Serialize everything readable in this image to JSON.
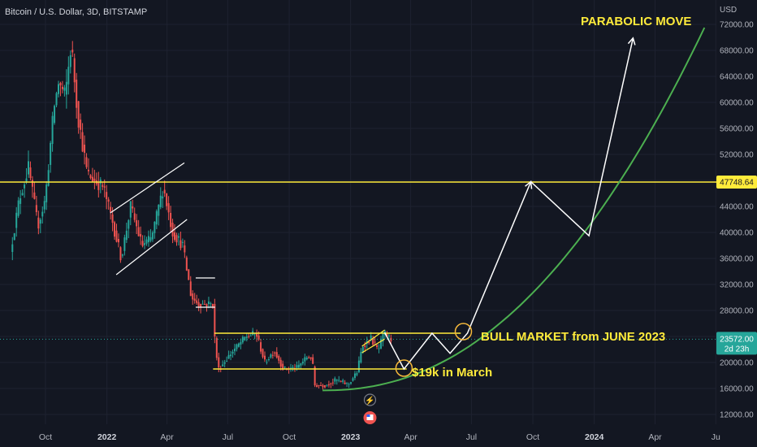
{
  "header": {
    "title": "Bitcoin / U.S. Dollar, 3D, BITSTAMP"
  },
  "colors": {
    "background": "#131722",
    "grid": "#1e2230",
    "up": "#26a69a",
    "down": "#ef5350",
    "annotation": "#ffeb3b",
    "projection": "#ffffff",
    "curve": "#4caf50",
    "price_badge": "#26a69a",
    "level_badge": "#ffeb3b",
    "event_marker": "#ef5350"
  },
  "annotations": {
    "parabolic": "PARABOLIC MOVE",
    "bull": "BULL MARKET from JUNE 2023",
    "march": "$19k in March"
  },
  "badges": {
    "level_value": "47748.64",
    "price_value": "23572.00",
    "price_countdown": "2d 23h"
  },
  "chart_data": {
    "type": "candlestick",
    "title": "Bitcoin / U.S. Dollar, 3D, BITSTAMP",
    "y_axis": {
      "unit": "USD",
      "ticks": [
        "72000.00",
        "68000.00",
        "64000.00",
        "60000.00",
        "56000.00",
        "52000.00",
        "48000.00",
        "44000.00",
        "40000.00",
        "36000.00",
        "32000.00",
        "28000.00",
        "24000.00",
        "20000.00",
        "16000.00",
        "12000.00"
      ],
      "range": [
        10000,
        74600
      ],
      "position": "right"
    },
    "x_axis": {
      "ticks": [
        {
          "label": "Oct",
          "date": "2021-10-01"
        },
        {
          "label": "2022",
          "date": "2022-01-01",
          "bold": true
        },
        {
          "label": "Apr",
          "date": "2022-04-01"
        },
        {
          "label": "Jul",
          "date": "2022-07-01"
        },
        {
          "label": "Oct",
          "date": "2022-10-01"
        },
        {
          "label": "2023",
          "date": "2023-01-01",
          "bold": true
        },
        {
          "label": "Apr",
          "date": "2023-04-01"
        },
        {
          "label": "Jul",
          "date": "2023-07-01"
        },
        {
          "label": "Oct",
          "date": "2023-10-01"
        },
        {
          "label": "2024",
          "date": "2024-01-01",
          "bold": true
        },
        {
          "label": "Apr",
          "date": "2024-04-01"
        },
        {
          "label": "Ju",
          "date": "2024-07-01"
        }
      ],
      "range": [
        "2021-08-11",
        "2024-07-01"
      ]
    },
    "price_path": [
      [
        "2021-08-11",
        37000
      ],
      [
        "2021-08-24",
        45000
      ],
      [
        "2021-09-07",
        50000
      ],
      [
        "2021-09-21",
        41000
      ],
      [
        "2021-10-02",
        45000
      ],
      [
        "2021-10-15",
        59000
      ],
      [
        "2021-10-22",
        63000
      ],
      [
        "2021-11-01",
        61000
      ],
      [
        "2021-11-10",
        69000
      ],
      [
        "2021-11-20",
        58000
      ],
      [
        "2021-12-04",
        49000
      ],
      [
        "2021-12-15",
        48000
      ],
      [
        "2021-12-28",
        47000
      ],
      [
        "2022-01-10",
        42000
      ],
      [
        "2022-01-24",
        36000
      ],
      [
        "2022-02-07",
        44000
      ],
      [
        "2022-02-24",
        38000
      ],
      [
        "2022-03-10",
        39000
      ],
      [
        "2022-03-28",
        47000
      ],
      [
        "2022-04-11",
        40000
      ],
      [
        "2022-04-26",
        38000
      ],
      [
        "2022-05-09",
        30000
      ],
      [
        "2022-05-20",
        29000
      ],
      [
        "2022-06-10",
        29000
      ],
      [
        "2022-06-14",
        22000
      ],
      [
        "2022-06-19",
        19000
      ],
      [
        "2022-07-08",
        21500
      ],
      [
        "2022-07-30",
        24000
      ],
      [
        "2022-08-14",
        24500
      ],
      [
        "2022-08-27",
        20000
      ],
      [
        "2022-09-10",
        21800
      ],
      [
        "2022-09-24",
        19000
      ],
      [
        "2022-10-14",
        19200
      ],
      [
        "2022-10-29",
        20800
      ],
      [
        "2022-11-06",
        20800
      ],
      [
        "2022-11-09",
        16500
      ],
      [
        "2022-11-25",
        16500
      ],
      [
        "2022-12-12",
        17300
      ],
      [
        "2022-12-30",
        16600
      ],
      [
        "2023-01-12",
        18500
      ],
      [
        "2023-01-20",
        22500
      ],
      [
        "2023-02-02",
        23700
      ],
      [
        "2023-02-13",
        21800
      ],
      [
        "2023-02-21",
        24600
      ],
      [
        "2023-03-03",
        23572
      ]
    ],
    "horizontal_levels": [
      {
        "value": 47748.64,
        "color": "#ffeb3b",
        "label": "47748.64"
      },
      {
        "value": 24500,
        "from": "2022-06-11",
        "to": "2023-06-15"
      },
      {
        "value": 19000,
        "from": "2022-06-09",
        "to": "2023-03-26"
      }
    ],
    "projection_path": [
      [
        "2023-02-21",
        24600
      ],
      [
        "2023-03-22",
        19000
      ],
      [
        "2023-05-03",
        24500
      ],
      [
        "2023-05-30",
        21400
      ],
      [
        "2023-06-25",
        24500
      ],
      [
        "2023-09-28",
        47800
      ],
      [
        "2023-12-24",
        39500
      ],
      [
        "2024-02-28",
        69900
      ]
    ],
    "curve": {
      "from": [
        "2022-11-20",
        15700
      ],
      "to": [
        "2024-06-14",
        71500
      ]
    },
    "current_price": 23572.0
  }
}
